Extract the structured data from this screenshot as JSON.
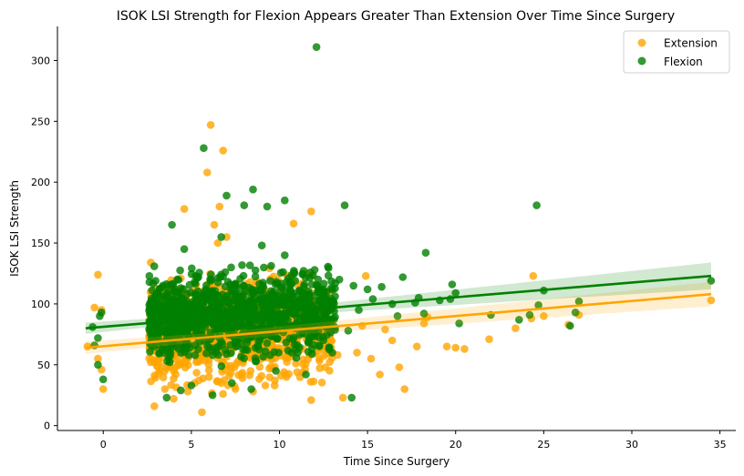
{
  "chart_data": {
    "type": "scatter",
    "title": "ISOK LSI Strength for Flexion Appears Greater Than Extension Over Time Since Surgery",
    "xlabel": "Time Since Surgery",
    "ylabel": "ISOK LSI Strength",
    "xlim": [
      -2.6,
      35.9
    ],
    "ylim": [
      -4,
      328
    ],
    "xticks": [
      0,
      5,
      10,
      15,
      20,
      25,
      30,
      35
    ],
    "yticks": [
      0,
      50,
      100,
      150,
      200,
      250,
      300
    ],
    "grid": false,
    "legend": "top-right",
    "series": [
      {
        "name": "Extension",
        "color": "#FFA500",
        "regression": {
          "x": [
            -1.0,
            34.5
          ],
          "y": [
            64.0,
            108.0
          ],
          "ci_start": 3,
          "ci_end": 10
        },
        "points": [
          [
            6.1,
            247
          ],
          [
            6.8,
            226
          ],
          [
            5.9,
            208
          ],
          [
            6.6,
            180
          ],
          [
            4.6,
            178
          ],
          [
            7.0,
            155
          ],
          [
            6.3,
            165
          ],
          [
            6.5,
            150
          ],
          [
            10.8,
            166
          ],
          [
            11.8,
            176
          ],
          [
            -0.3,
            124
          ],
          [
            24.4,
            123
          ],
          [
            -0.5,
            97
          ],
          [
            -0.1,
            95
          ],
          [
            -0.3,
            55
          ],
          [
            -0.1,
            46
          ],
          [
            0.0,
            30
          ],
          [
            -0.9,
            65
          ],
          [
            2.7,
            134
          ],
          [
            2.9,
            16
          ],
          [
            5.6,
            11
          ],
          [
            11.8,
            21
          ],
          [
            13.6,
            23
          ],
          [
            17.1,
            30
          ],
          [
            16.8,
            48
          ],
          [
            15.2,
            55
          ],
          [
            15.7,
            42
          ],
          [
            14.4,
            60
          ],
          [
            16.4,
            70
          ],
          [
            17.8,
            65
          ],
          [
            18.2,
            84
          ],
          [
            19.5,
            65
          ],
          [
            20.0,
            64
          ],
          [
            20.5,
            63
          ],
          [
            21.9,
            71
          ],
          [
            23.4,
            80
          ],
          [
            24.3,
            88
          ],
          [
            25.0,
            90
          ],
          [
            26.4,
            83
          ],
          [
            27.0,
            91
          ],
          [
            34.5,
            103
          ],
          [
            14.9,
            123
          ],
          [
            12.4,
            111
          ],
          [
            13.1,
            100
          ],
          [
            14.7,
            82
          ],
          [
            16.0,
            79
          ],
          [
            18.4,
            89
          ],
          [
            3.5,
            30
          ],
          [
            4.0,
            22
          ],
          [
            4.8,
            28
          ],
          [
            5.2,
            35
          ],
          [
            7.5,
            30
          ],
          [
            8.5,
            28
          ],
          [
            9.2,
            33
          ],
          [
            10.4,
            40
          ],
          [
            3.2,
            45
          ],
          [
            6.0,
            40
          ],
          [
            7.9,
            39
          ],
          [
            11.0,
            44
          ],
          [
            12.6,
            48
          ],
          [
            9.6,
            55
          ],
          [
            8.8,
            60
          ],
          [
            13.3,
            58
          ]
        ],
        "cloud": {
          "x_min": 2.6,
          "x_max": 13.0,
          "y_min": 20,
          "y_max": 135,
          "count": 1000
        }
      },
      {
        "name": "Flexion",
        "color": "#008000",
        "regression": {
          "x": [
            -1.0,
            34.5
          ],
          "y": [
            80.0,
            123.0
          ],
          "ci_start": 2,
          "ci_end": 11
        },
        "points": [
          [
            12.1,
            311
          ],
          [
            5.7,
            228
          ],
          [
            8.5,
            194
          ],
          [
            10.3,
            185
          ],
          [
            7.0,
            189
          ],
          [
            9.3,
            180
          ],
          [
            8.0,
            181
          ],
          [
            13.7,
            181
          ],
          [
            24.6,
            181
          ],
          [
            3.9,
            165
          ],
          [
            6.7,
            155
          ],
          [
            4.6,
            145
          ],
          [
            9.0,
            148
          ],
          [
            10.3,
            140
          ],
          [
            18.3,
            142
          ],
          [
            -0.6,
            81
          ],
          [
            -0.3,
            72
          ],
          [
            -0.1,
            93
          ],
          [
            -0.2,
            90
          ],
          [
            -0.3,
            50
          ],
          [
            0.0,
            38
          ],
          [
            -0.5,
            66
          ],
          [
            17.9,
            105
          ],
          [
            18.2,
            92
          ],
          [
            19.1,
            103
          ],
          [
            19.7,
            104
          ],
          [
            20.2,
            84
          ],
          [
            19.8,
            116
          ],
          [
            20.0,
            109
          ],
          [
            22.0,
            91
          ],
          [
            23.6,
            87
          ],
          [
            24.2,
            91
          ],
          [
            24.7,
            99
          ],
          [
            25.0,
            111
          ],
          [
            26.5,
            82
          ],
          [
            26.8,
            93
          ],
          [
            27.0,
            102
          ],
          [
            34.5,
            119
          ],
          [
            14.1,
            23
          ],
          [
            13.9,
            78
          ],
          [
            15.3,
            104
          ],
          [
            15.8,
            114
          ],
          [
            16.4,
            100
          ],
          [
            17.0,
            122
          ],
          [
            17.7,
            101
          ],
          [
            16.7,
            90
          ],
          [
            15.0,
            112
          ],
          [
            14.5,
            95
          ],
          [
            3.6,
            23
          ],
          [
            4.4,
            29
          ],
          [
            5.0,
            33
          ],
          [
            6.2,
            25
          ],
          [
            7.3,
            35
          ],
          [
            8.4,
            30
          ],
          [
            9.8,
            45
          ],
          [
            11.5,
            42
          ],
          [
            13.0,
            60
          ],
          [
            12.5,
            70
          ],
          [
            10.9,
            80
          ],
          [
            14.2,
            115
          ],
          [
            13.4,
            120
          ],
          [
            12.0,
            128
          ]
        ],
        "cloud": {
          "x_min": 2.6,
          "x_max": 13.2,
          "y_min": 45,
          "y_max": 135,
          "count": 1100
        }
      }
    ]
  }
}
